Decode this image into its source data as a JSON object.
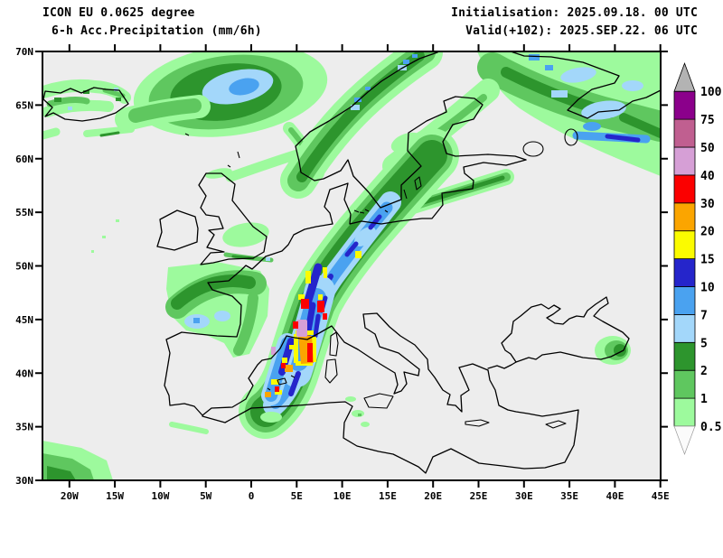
{
  "header": {
    "model_line": "ICON EU 0.0625 degree",
    "variable_line": "6-h Acc.Precipitation (mm/6h)",
    "init_line": "Initialisation: 2025.09.18. 00 UTC",
    "valid_line": "Valid(+102): 2025.SEP.22. 06 UTC"
  },
  "axes": {
    "lat_labels": [
      "70N",
      "65N",
      "60N",
      "55N",
      "50N",
      "45N",
      "40N",
      "35N",
      "30N"
    ],
    "lon_labels": [
      "20W",
      "15W",
      "10W",
      "5W",
      "0",
      "5E",
      "10E",
      "15E",
      "20E",
      "25E",
      "30E",
      "35E",
      "40E",
      "45E"
    ]
  },
  "colorbar": {
    "boundaries": [
      "0.5",
      "1",
      "2",
      "5",
      "7",
      "10",
      "15",
      "20",
      "30",
      "40",
      "50",
      "75",
      "100"
    ],
    "segment_colors": [
      "#9dfa9d",
      "#5fc75f",
      "#2d952d",
      "#a3d7fa",
      "#4aa2f0",
      "#2525cb",
      "#fbfb00",
      "#fba500",
      "#fb0000",
      "#d69fd6",
      "#c05f90",
      "#8b008b"
    ],
    "underflow_color": "#fbfbfb",
    "overflow_color": "#b3b3b3"
  },
  "map": {
    "background": "#ededed",
    "coastline_color": "#000000",
    "frame_color": "#000000"
  }
}
